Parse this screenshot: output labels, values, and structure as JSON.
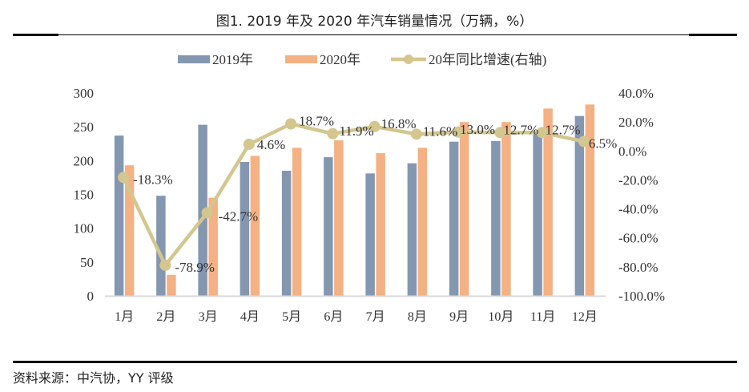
{
  "title": "图1. 2019 年及 2020 年汽车销量情况（万辆，%）",
  "source": "资料来源：中汽协，YY 评级",
  "colors": {
    "s2019": "#8497B0",
    "s2020": "#F4B183",
    "growth": "#D3C68E",
    "axis": "#D9D9D9",
    "text": "#404040"
  },
  "chart_data": {
    "type": "bar",
    "title": "图1. 2019 年及 2020 年汽车销量情况（万辆，%）",
    "categories": [
      "1月",
      "2月",
      "3月",
      "4月",
      "5月",
      "6月",
      "7月",
      "8月",
      "9月",
      "10月",
      "11月",
      "12月"
    ],
    "series": [
      {
        "name": "2019年",
        "type": "bar",
        "axis": "left",
        "values": [
          237,
          148,
          253,
          198,
          185,
          205,
          181,
          196,
          228,
          229,
          240,
          266
        ]
      },
      {
        "name": "2020年",
        "type": "bar",
        "axis": "left",
        "values": [
          193,
          31,
          145,
          207,
          219,
          230,
          211,
          219,
          257,
          257,
          277,
          283
        ]
      },
      {
        "name": "20年同比增速(右轴)",
        "type": "line",
        "axis": "right",
        "values": [
          -18.3,
          -78.9,
          -42.7,
          4.6,
          18.7,
          11.9,
          16.8,
          11.6,
          13.0,
          12.7,
          12.7,
          6.5
        ],
        "labels": [
          "-18.3%",
          "-78.9%",
          "-42.7%",
          "4.6%",
          "18.7%",
          "11.9%",
          "16.8%",
          "11.6%",
          "13.0%",
          "12.7%",
          "12.7%",
          "6.5%"
        ]
      }
    ],
    "y_left": {
      "label": "",
      "ylim": [
        0,
        300
      ],
      "ticks": [
        "0",
        "50",
        "100",
        "150",
        "200",
        "250",
        "300"
      ],
      "tick_values": [
        0,
        50,
        100,
        150,
        200,
        250,
        300
      ]
    },
    "y_right": {
      "label": "",
      "ylim": [
        -100,
        40
      ],
      "ticks": [
        "-100.0%",
        "-80.0%",
        "-60.0%",
        "-40.0%",
        "-20.0%",
        "0.0%",
        "20.0%",
        "40.0%"
      ],
      "tick_values": [
        -100,
        -80,
        -60,
        -40,
        -20,
        0,
        20,
        40
      ]
    },
    "xlabel": "",
    "grid": false,
    "legend": {
      "placement": "top-center",
      "entries": [
        "2019年",
        "2020年",
        "20年同比增速(右轴)"
      ]
    }
  }
}
